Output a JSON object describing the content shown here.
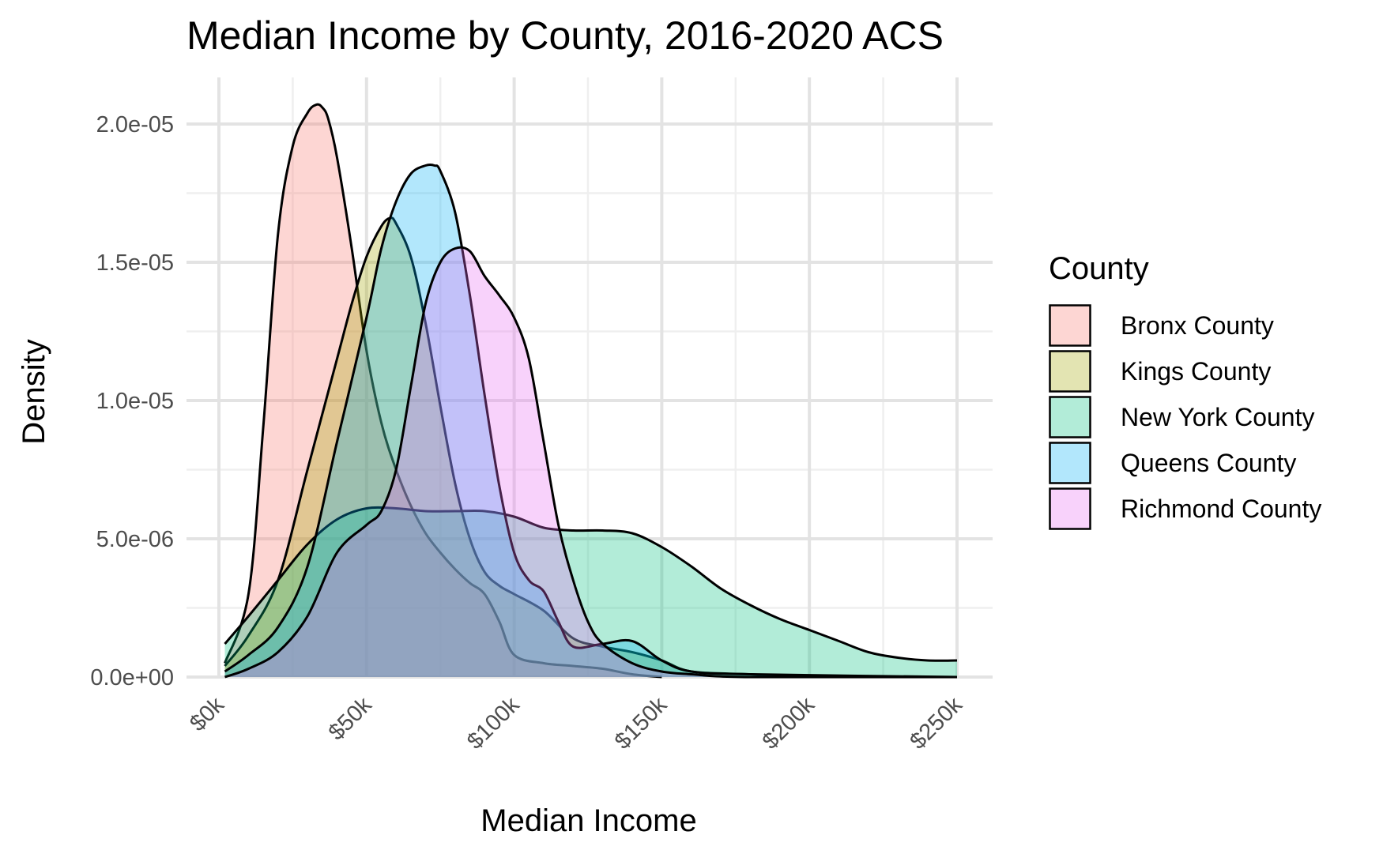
{
  "chart_data": {
    "type": "area",
    "subtype": "density",
    "title": "Median Income by County, 2016-2020 ACS",
    "xlabel": "Median Income",
    "ylabel": "Density",
    "xlim": [
      0,
      250000
    ],
    "ylim": [
      0,
      2.05e-05
    ],
    "x_ticks": [
      {
        "value": 0,
        "label": "$0k"
      },
      {
        "value": 50000,
        "label": "$50k"
      },
      {
        "value": 100000,
        "label": "$100k"
      },
      {
        "value": 150000,
        "label": "$150k"
      },
      {
        "value": 200000,
        "label": "$200k"
      },
      {
        "value": 250000,
        "label": "$250k"
      }
    ],
    "y_ticks": [
      {
        "value": 0,
        "label": "0.0e+00"
      },
      {
        "value": 5e-06,
        "label": "5.0e-06"
      },
      {
        "value": 1e-05,
        "label": "1.0e-05"
      },
      {
        "value": 1.5e-05,
        "label": "1.5e-05"
      },
      {
        "value": 2e-05,
        "label": "2.0e-05"
      }
    ],
    "grid": true,
    "legend": {
      "title": "County",
      "position": "right"
    },
    "series": [
      {
        "name": "Bronx County",
        "color": "#F8766D",
        "x": [
          2000,
          10000,
          15000,
          20000,
          25000,
          30000,
          33000,
          35000,
          37000,
          40000,
          45000,
          50000,
          55000,
          60000,
          65000,
          70000,
          75000,
          80000,
          85000,
          90000,
          95000,
          100000,
          110000,
          120000,
          130000,
          140000,
          150000
        ],
        "y": [
          5e-07,
          3e-06,
          9e-06,
          1.6e-05,
          1.92e-05,
          2.04e-05,
          2.07e-05,
          2.06e-05,
          2.02e-05,
          1.88e-05,
          1.55e-05,
          1.18e-05,
          9.2e-06,
          7.5e-06,
          6.2e-06,
          5.2e-06,
          4.5e-06,
          3.9e-06,
          3.4e-06,
          3e-06,
          2e-06,
          8e-07,
          5e-07,
          4e-07,
          3e-07,
          1e-07,
          0
        ]
      },
      {
        "name": "Kings County",
        "color": "#A3A500",
        "x": [
          2000,
          10000,
          20000,
          30000,
          40000,
          45000,
          50000,
          55000,
          58000,
          60000,
          65000,
          70000,
          75000,
          80000,
          85000,
          90000,
          95000,
          100000,
          110000,
          120000,
          130000,
          140000,
          150000,
          160000,
          180000,
          200000,
          250000
        ],
        "y": [
          4e-07,
          1.5e-06,
          3.5e-06,
          7.5e-06,
          1.15e-05,
          1.35e-05,
          1.52e-05,
          1.63e-05,
          1.66e-05,
          1.64e-05,
          1.52e-05,
          1.28e-05,
          9.8e-06,
          7e-06,
          5e-06,
          3.8e-06,
          3.3e-06,
          3e-06,
          2.4e-06,
          1.4e-06,
          1.1e-06,
          9e-07,
          6e-07,
          2e-07,
          1e-07,
          0,
          0
        ]
      },
      {
        "name": "New York County",
        "color": "#00BF7D",
        "x": [
          2000,
          10000,
          20000,
          30000,
          40000,
          50000,
          60000,
          70000,
          80000,
          90000,
          100000,
          110000,
          120000,
          130000,
          140000,
          150000,
          160000,
          170000,
          180000,
          190000,
          200000,
          210000,
          220000,
          230000,
          240000,
          250000
        ],
        "y": [
          1.2e-06,
          2.2e-06,
          3.5e-06,
          4.8e-06,
          5.7e-06,
          6.1e-06,
          6.1e-06,
          6e-06,
          6e-06,
          6e-06,
          5.8e-06,
          5.4e-06,
          5.3e-06,
          5.3e-06,
          5.2e-06,
          4.7e-06,
          4e-06,
          3.2e-06,
          2.6e-06,
          2.1e-06,
          1.7e-06,
          1.3e-06,
          9e-07,
          7e-07,
          6e-07,
          6e-07
        ]
      },
      {
        "name": "Queens County",
        "color": "#00B0F6",
        "x": [
          2000,
          10000,
          20000,
          30000,
          40000,
          50000,
          55000,
          60000,
          65000,
          70000,
          73000,
          75000,
          80000,
          85000,
          90000,
          95000,
          100000,
          105000,
          110000,
          115000,
          120000,
          130000,
          140000,
          150000,
          160000,
          180000,
          250000
        ],
        "y": [
          2e-07,
          8e-07,
          1.8e-06,
          4e-06,
          8.5e-06,
          1.3e-05,
          1.55e-05,
          1.72e-05,
          1.82e-05,
          1.85e-05,
          1.85e-05,
          1.83e-05,
          1.68e-05,
          1.38e-05,
          1.02e-05,
          6.9e-06,
          4.5e-06,
          3.5e-06,
          3.1e-06,
          2e-06,
          1.1e-06,
          1.2e-06,
          1.3e-06,
          6e-07,
          2e-07,
          1e-07,
          0
        ]
      },
      {
        "name": "Richmond County",
        "color": "#E76BF3",
        "x": [
          2000,
          10000,
          20000,
          30000,
          40000,
          50000,
          55000,
          60000,
          65000,
          70000,
          75000,
          80000,
          85000,
          90000,
          95000,
          100000,
          105000,
          110000,
          115000,
          120000,
          125000,
          130000,
          140000,
          150000,
          160000,
          180000,
          250000
        ],
        "y": [
          0,
          3e-07,
          9e-07,
          2.2e-06,
          4.5e-06,
          5.5e-06,
          6e-06,
          7.5e-06,
          1.05e-05,
          1.35e-05,
          1.5e-05,
          1.55e-05,
          1.54e-05,
          1.45e-05,
          1.38e-05,
          1.3e-05,
          1.15e-05,
          8.5e-06,
          5.5e-06,
          3.5e-06,
          2e-06,
          1.2e-06,
          5e-07,
          2e-07,
          1e-07,
          0,
          0
        ]
      }
    ]
  }
}
